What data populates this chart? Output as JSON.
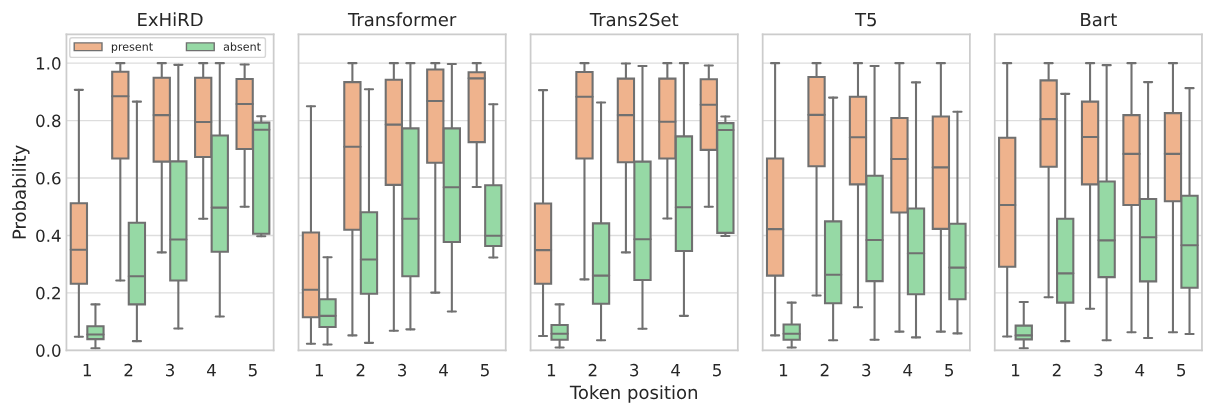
{
  "chart_data": [
    {
      "type": "box",
      "title": "ExHiRD",
      "ylabel": "Probability",
      "categories": [
        "1",
        "2",
        "3",
        "4",
        "5"
      ],
      "ylim": [
        0,
        1.1
      ],
      "yticks": [
        {
          "value": 0.0,
          "label": "0.0"
        },
        {
          "value": 0.2,
          "label": "0.2"
        },
        {
          "value": 0.4,
          "label": "0.4"
        },
        {
          "value": 0.6,
          "label": "0.6"
        },
        {
          "value": 0.8,
          "label": "0.8"
        },
        {
          "value": 1.0,
          "label": "1.0"
        }
      ],
      "grid": "y",
      "legend": "top left",
      "series": [
        {
          "name": "present",
          "color": "#efb38d",
          "boxes": [
            {
              "low": 0.047,
              "q1": 0.232,
              "median": 0.35,
              "q3": 0.512,
              "high": 0.907
            },
            {
              "low": 0.243,
              "q1": 0.668,
              "median": 0.885,
              "q3": 0.97,
              "high": 1.0
            },
            {
              "low": 0.341,
              "q1": 0.657,
              "median": 0.819,
              "q3": 0.949,
              "high": 1.0
            },
            {
              "low": 0.458,
              "q1": 0.673,
              "median": 0.795,
              "q3": 0.949,
              "high": 1.0
            },
            {
              "low": 0.5,
              "q1": 0.701,
              "median": 0.858,
              "q3": 0.945,
              "high": 0.995
            }
          ]
        },
        {
          "name": "absent",
          "color": "#96d9a5",
          "boxes": [
            {
              "low": 0.007,
              "q1": 0.039,
              "median": 0.055,
              "q3": 0.084,
              "high": 0.16
            },
            {
              "low": 0.032,
              "q1": 0.16,
              "median": 0.258,
              "q3": 0.444,
              "high": 0.866
            },
            {
              "low": 0.076,
              "q1": 0.243,
              "median": 0.386,
              "q3": 0.658,
              "high": 0.994
            },
            {
              "low": 0.118,
              "q1": 0.343,
              "median": 0.497,
              "q3": 0.748,
              "high": 1.0
            },
            {
              "low": 0.397,
              "q1": 0.406,
              "median": 0.768,
              "q3": 0.793,
              "high": 0.815
            }
          ]
        }
      ]
    },
    {
      "type": "box",
      "title": "Transformer",
      "categories": [
        "1",
        "2",
        "3",
        "4",
        "5"
      ],
      "ylim": [
        0,
        1.1
      ],
      "yticks": [
        {
          "value": 0.0,
          "label": null
        },
        {
          "value": 0.2,
          "label": null
        },
        {
          "value": 0.4,
          "label": null
        },
        {
          "value": 0.6,
          "label": null
        },
        {
          "value": 0.8,
          "label": null
        },
        {
          "value": 1.0,
          "label": null
        }
      ],
      "grid": "y",
      "tick_labels": "x",
      "series": [
        {
          "color": "#efb38d",
          "boxes": [
            {
              "low": 0.023,
              "q1": 0.115,
              "median": 0.211,
              "q3": 0.41,
              "high": 0.85
            },
            {
              "low": 0.052,
              "q1": 0.42,
              "median": 0.709,
              "q3": 0.934,
              "high": 1.0
            },
            {
              "low": 0.068,
              "q1": 0.576,
              "median": 0.786,
              "q3": 0.942,
              "high": 1.0
            },
            {
              "low": 0.201,
              "q1": 0.653,
              "median": 0.868,
              "q3": 0.978,
              "high": 1.0
            },
            {
              "low": 0.569,
              "q1": 0.725,
              "median": 0.947,
              "q3": 0.968,
              "high": 1.0
            }
          ]
        },
        {
          "color": "#96d9a5",
          "boxes": [
            {
              "low": 0.02,
              "q1": 0.081,
              "median": 0.12,
              "q3": 0.178,
              "high": 0.324
            },
            {
              "low": 0.026,
              "q1": 0.197,
              "median": 0.316,
              "q3": 0.481,
              "high": 0.909
            },
            {
              "low": 0.073,
              "q1": 0.258,
              "median": 0.458,
              "q3": 0.773,
              "high": 1.0
            },
            {
              "low": 0.135,
              "q1": 0.377,
              "median": 0.568,
              "q3": 0.773,
              "high": 0.997
            },
            {
              "low": 0.323,
              "q1": 0.363,
              "median": 0.399,
              "q3": 0.575,
              "high": 0.857
            }
          ]
        }
      ]
    },
    {
      "type": "box",
      "title": "Trans2Set",
      "xlabel": "Token position",
      "categories": [
        "1",
        "2",
        "3",
        "4",
        "5"
      ],
      "ylim": [
        0,
        1.1
      ],
      "yticks": [
        {
          "value": 0.0,
          "label": null
        },
        {
          "value": 0.2,
          "label": null
        },
        {
          "value": 0.4,
          "label": null
        },
        {
          "value": 0.6,
          "label": null
        },
        {
          "value": 0.8,
          "label": null
        },
        {
          "value": 1.0,
          "label": null
        }
      ],
      "grid": "y",
      "tick_labels": "x",
      "series": [
        {
          "color": "#efb38d",
          "boxes": [
            {
              "low": 0.05,
              "q1": 0.232,
              "median": 0.349,
              "q3": 0.511,
              "high": 0.906
            },
            {
              "low": 0.247,
              "q1": 0.668,
              "median": 0.883,
              "q3": 0.969,
              "high": 1.0
            },
            {
              "low": 0.341,
              "q1": 0.655,
              "median": 0.819,
              "q3": 0.946,
              "high": 0.999
            },
            {
              "low": 0.459,
              "q1": 0.668,
              "median": 0.796,
              "q3": 0.946,
              "high": 1.0
            },
            {
              "low": 0.5,
              "q1": 0.698,
              "median": 0.855,
              "q3": 0.944,
              "high": 0.992
            }
          ]
        },
        {
          "color": "#96d9a5",
          "boxes": [
            {
              "low": 0.01,
              "q1": 0.037,
              "median": 0.058,
              "q3": 0.088,
              "high": 0.16
            },
            {
              "low": 0.035,
              "q1": 0.162,
              "median": 0.26,
              "q3": 0.442,
              "high": 0.863
            },
            {
              "low": 0.075,
              "q1": 0.245,
              "median": 0.387,
              "q3": 0.657,
              "high": 0.99
            },
            {
              "low": 0.12,
              "q1": 0.346,
              "median": 0.498,
              "q3": 0.745,
              "high": 1.0
            },
            {
              "low": 0.398,
              "q1": 0.409,
              "median": 0.767,
              "q3": 0.791,
              "high": 0.814
            }
          ]
        }
      ]
    },
    {
      "type": "box",
      "title": "T5",
      "categories": [
        "1",
        "2",
        "3",
        "4",
        "5"
      ],
      "ylim": [
        0,
        1.1
      ],
      "yticks": [
        {
          "value": 0.0,
          "label": null
        },
        {
          "value": 0.2,
          "label": null
        },
        {
          "value": 0.4,
          "label": null
        },
        {
          "value": 0.6,
          "label": null
        },
        {
          "value": 0.8,
          "label": null
        },
        {
          "value": 1.0,
          "label": null
        }
      ],
      "grid": "y",
      "tick_labels": "x",
      "series": [
        {
          "color": "#efb38d",
          "boxes": [
            {
              "low": 0.052,
              "q1": 0.26,
              "median": 0.422,
              "q3": 0.668,
              "high": 1.0
            },
            {
              "low": 0.191,
              "q1": 0.641,
              "median": 0.82,
              "q3": 0.952,
              "high": 1.0
            },
            {
              "low": 0.15,
              "q1": 0.578,
              "median": 0.742,
              "q3": 0.883,
              "high": 1.0
            },
            {
              "low": 0.065,
              "q1": 0.48,
              "median": 0.666,
              "q3": 0.809,
              "high": 1.0
            },
            {
              "low": 0.065,
              "q1": 0.423,
              "median": 0.637,
              "q3": 0.814,
              "high": 1.0
            }
          ]
        },
        {
          "color": "#96d9a5",
          "boxes": [
            {
              "low": 0.01,
              "q1": 0.037,
              "median": 0.058,
              "q3": 0.09,
              "high": 0.166
            },
            {
              "low": 0.035,
              "q1": 0.164,
              "median": 0.263,
              "q3": 0.449,
              "high": 0.88
            },
            {
              "low": 0.037,
              "q1": 0.241,
              "median": 0.384,
              "q3": 0.608,
              "high": 0.99
            },
            {
              "low": 0.045,
              "q1": 0.195,
              "median": 0.338,
              "q3": 0.494,
              "high": 0.933
            },
            {
              "low": 0.059,
              "q1": 0.178,
              "median": 0.288,
              "q3": 0.441,
              "high": 0.831
            }
          ]
        }
      ]
    },
    {
      "type": "box",
      "title": "Bart",
      "categories": [
        "1",
        "2",
        "3",
        "4",
        "5"
      ],
      "ylim": [
        0,
        1.1
      ],
      "yticks": [
        {
          "value": 0.0,
          "label": null
        },
        {
          "value": 0.2,
          "label": null
        },
        {
          "value": 0.4,
          "label": null
        },
        {
          "value": 0.6,
          "label": null
        },
        {
          "value": 0.8,
          "label": null
        },
        {
          "value": 1.0,
          "label": null
        }
      ],
      "grid": "y",
      "tick_labels": "x",
      "series": [
        {
          "color": "#efb38d",
          "boxes": [
            {
              "low": 0.048,
              "q1": 0.291,
              "median": 0.506,
              "q3": 0.74,
              "high": 1.0
            },
            {
              "low": 0.185,
              "q1": 0.639,
              "median": 0.805,
              "q3": 0.94,
              "high": 1.0
            },
            {
              "low": 0.145,
              "q1": 0.578,
              "median": 0.743,
              "q3": 0.866,
              "high": 1.0
            },
            {
              "low": 0.063,
              "q1": 0.506,
              "median": 0.684,
              "q3": 0.819,
              "high": 1.0
            },
            {
              "low": 0.063,
              "q1": 0.519,
              "median": 0.684,
              "q3": 0.826,
              "high": 1.0
            }
          ]
        },
        {
          "color": "#96d9a5",
          "boxes": [
            {
              "low": 0.007,
              "q1": 0.038,
              "median": 0.052,
              "q3": 0.086,
              "high": 0.168
            },
            {
              "low": 0.032,
              "q1": 0.166,
              "median": 0.268,
              "q3": 0.458,
              "high": 0.893
            },
            {
              "low": 0.035,
              "q1": 0.255,
              "median": 0.383,
              "q3": 0.588,
              "high": 0.993
            },
            {
              "low": 0.043,
              "q1": 0.24,
              "median": 0.394,
              "q3": 0.527,
              "high": 0.934
            },
            {
              "low": 0.057,
              "q1": 0.218,
              "median": 0.366,
              "q3": 0.538,
              "high": 0.913
            }
          ]
        }
      ]
    }
  ]
}
